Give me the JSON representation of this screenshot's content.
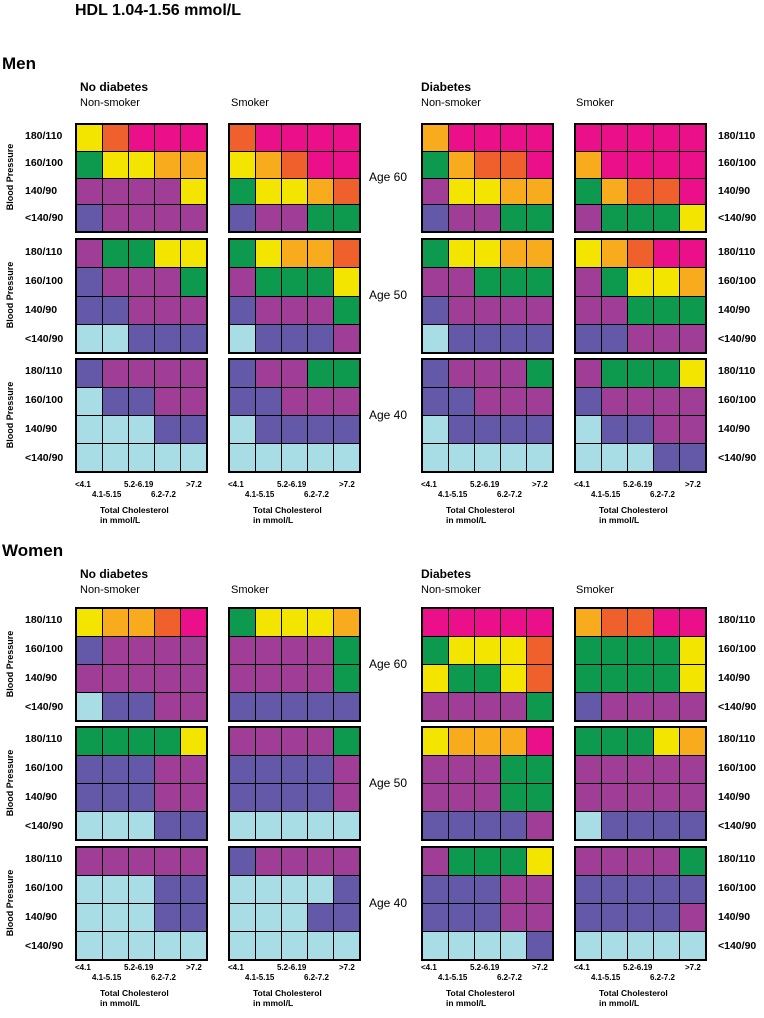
{
  "title": "HDL 1.04-1.56 mmol/L",
  "colors": {
    "C": "#a8dde6",
    "B": "#6458a8",
    "P": "#a03d96",
    "G": "#0e9a4e",
    "Y": "#f3e500",
    "A": "#f8ab1c",
    "O": "#f0602c",
    "M": "#ec0f8a"
  },
  "color_legend_note": "",
  "group_labels": {
    "no_diabetes": "No diabetes",
    "diabetes": "Diabetes",
    "non_smoker": "Non-smoker",
    "smoker": "Smoker"
  },
  "bp_axis_title": "Blood Pressure",
  "bp_levels": [
    "180/110",
    "160/100",
    "140/90",
    "<140/90"
  ],
  "age_labels": [
    "Age 60",
    "Age 50",
    "Age 40"
  ],
  "tc_categories_top": [
    "<4.1",
    "5.2-6.19",
    ">7.2"
  ],
  "tc_categories_bottom": [
    "4.1-5.15",
    "6.2-7.2"
  ],
  "tc_title_line1": "Total Cholesterol",
  "tc_title_line2": "in mmol/L",
  "chart_data": {
    "type": "heatmap",
    "title": "HDL 1.04-1.56 mmol/L",
    "x_categories": [
      "<4.1",
      "4.1-5.15",
      "5.2-6.19",
      "6.2-7.2",
      ">7.2"
    ],
    "y_categories": [
      "180/110",
      "160/100",
      "140/90",
      "<140/90"
    ],
    "xlabel": "Total Cholesterol in mmol/L",
    "ylabel": "Blood Pressure",
    "sections": [
      {
        "name": "Men",
        "panels": [
          {
            "diabetes": "No diabetes",
            "smoking": "Non-smoker",
            "age": "Age 60",
            "grid": [
              "YOMMM",
              "GYYAA",
              "PPPPY",
              "BPPPP"
            ]
          },
          {
            "diabetes": "No diabetes",
            "smoking": "Smoker",
            "age": "Age 60",
            "grid": [
              "OMMMM",
              "YAOMM",
              "GYYAO",
              "BPPGG"
            ]
          },
          {
            "diabetes": "Diabetes",
            "smoking": "Non-smoker",
            "age": "Age 60",
            "grid": [
              "AMMMM",
              "GAOOM",
              "PYYAA",
              "BPPGG"
            ]
          },
          {
            "diabetes": "Diabetes",
            "smoking": "Smoker",
            "age": "Age 60",
            "grid": [
              "MMMMM",
              "AMMMM",
              "GAOOM",
              "PGGGY"
            ]
          },
          {
            "diabetes": "No diabetes",
            "smoking": "Non-smoker",
            "age": "Age 50",
            "grid": [
              "PGGYY",
              "BPPPG",
              "BBPPP",
              "CCBBB"
            ]
          },
          {
            "diabetes": "No diabetes",
            "smoking": "Smoker",
            "age": "Age 50",
            "grid": [
              "GYAAO",
              "PGGGY",
              "BPPPG",
              "CBBBP"
            ]
          },
          {
            "diabetes": "Diabetes",
            "smoking": "Non-smoker",
            "age": "Age 50",
            "grid": [
              "GYYAA",
              "PPGGG",
              "BPPPP",
              "CBBBB"
            ]
          },
          {
            "diabetes": "Diabetes",
            "smoking": "Smoker",
            "age": "Age 50",
            "grid": [
              "YAOMM",
              "PGYYA",
              "PPGGG",
              "BBPPP"
            ]
          },
          {
            "diabetes": "No diabetes",
            "smoking": "Non-smoker",
            "age": "Age 40",
            "grid": [
              "BPPPP",
              "CBBPP",
              "CCCBB",
              "CCCCC"
            ]
          },
          {
            "diabetes": "No diabetes",
            "smoking": "Smoker",
            "age": "Age 40",
            "grid": [
              "BPPGG",
              "BBPPP",
              "CBBBB",
              "CCCCC"
            ]
          },
          {
            "diabetes": "Diabetes",
            "smoking": "Non-smoker",
            "age": "Age 40",
            "grid": [
              "BPPPG",
              "BBPPP",
              "CBBBB",
              "CCCCC"
            ]
          },
          {
            "diabetes": "Diabetes",
            "smoking": "Smoker",
            "age": "Age 40",
            "grid": [
              "PGGGY",
              "BPPPP",
              "CBBPP",
              "CCCBB"
            ]
          }
        ]
      },
      {
        "name": "Women",
        "panels": [
          {
            "diabetes": "No diabetes",
            "smoking": "Non-smoker",
            "age": "Age 60",
            "grid": [
              "YAAOM",
              "BPPPP",
              "PPPPP",
              "CBBPP"
            ]
          },
          {
            "diabetes": "No diabetes",
            "smoking": "Smoker",
            "age": "Age 60",
            "grid": [
              "GYYYA",
              "PPPPG",
              "PPPPG",
              "BBBBB"
            ]
          },
          {
            "diabetes": "Diabetes",
            "smoking": "Non-smoker",
            "age": "Age 60",
            "grid": [
              "MMMMM",
              "GYYYO",
              "YGGYO",
              "PPPPG"
            ]
          },
          {
            "diabetes": "Diabetes",
            "smoking": "Smoker",
            "age": "Age 60",
            "grid": [
              "AOOMM",
              "GGGGY",
              "GGGGY",
              "BPPPP"
            ]
          },
          {
            "diabetes": "No diabetes",
            "smoking": "Non-smoker",
            "age": "Age 50",
            "grid": [
              "GGGGY",
              "BBBPP",
              "BBBPP",
              "CCCBB"
            ]
          },
          {
            "diabetes": "No diabetes",
            "smoking": "Smoker",
            "age": "Age 50",
            "grid": [
              "PPPPG",
              "BBBBP",
              "BBBBP",
              "CCCCC"
            ]
          },
          {
            "diabetes": "Diabetes",
            "smoking": "Non-smoker",
            "age": "Age 50",
            "grid": [
              "YAAAM",
              "PPPGG",
              "PPPGG",
              "BBBBP"
            ]
          },
          {
            "diabetes": "Diabetes",
            "smoking": "Smoker",
            "age": "Age 50",
            "grid": [
              "GGGYA",
              "PPPPP",
              "PPPPP",
              "CBBBB"
            ]
          },
          {
            "diabetes": "No diabetes",
            "smoking": "Non-smoker",
            "age": "Age 40",
            "grid": [
              "PPPPP",
              "CCCBB",
              "CCCBB",
              "CCCCC"
            ]
          },
          {
            "diabetes": "No diabetes",
            "smoking": "Smoker",
            "age": "Age 40",
            "grid": [
              "BPPPP",
              "CCCCB",
              "CCCBB",
              "CCCCC"
            ]
          },
          {
            "diabetes": "Diabetes",
            "smoking": "Non-smoker",
            "age": "Age 40",
            "grid": [
              "PGGGY",
              "BBBPP",
              "BBBPP",
              "CCCCB"
            ]
          },
          {
            "diabetes": "Diabetes",
            "smoking": "Smoker",
            "age": "Age 40",
            "grid": [
              "PPPPG",
              "BBBBB",
              "BBBBP",
              "CCCCC"
            ]
          }
        ]
      }
    ]
  }
}
